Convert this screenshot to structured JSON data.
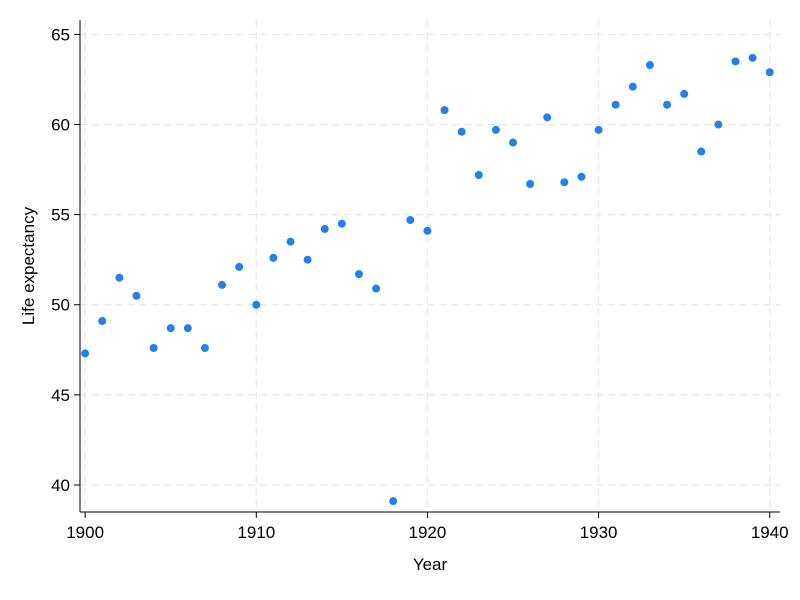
{
  "chart_data": {
    "type": "scatter",
    "xlabel": "Year",
    "ylabel": "Life expectancy",
    "xlim": [
      1899.7,
      1940.6
    ],
    "ylim": [
      38.5,
      65.8
    ],
    "xticks": [
      1900,
      1910,
      1920,
      1930,
      1940
    ],
    "yticks": [
      40,
      45,
      50,
      55,
      60,
      65
    ],
    "grid": true,
    "point_color": "#1f82ec",
    "series": [
      {
        "x": [
          1900,
          1901,
          1902,
          1903,
          1904,
          1905,
          1906,
          1907,
          1908,
          1909,
          1910,
          1911,
          1912,
          1913,
          1914,
          1915,
          1916,
          1917,
          1918,
          1919,
          1920,
          1921,
          1922,
          1923,
          1924,
          1925,
          1926,
          1927,
          1928,
          1929,
          1930,
          1931,
          1932,
          1933,
          1934,
          1935,
          1936,
          1937,
          1938,
          1939,
          1940
        ],
        "y": [
          47.3,
          49.1,
          51.5,
          50.5,
          47.6,
          48.7,
          48.7,
          47.6,
          51.1,
          52.1,
          50.0,
          52.6,
          53.5,
          52.5,
          54.2,
          54.5,
          51.7,
          50.9,
          39.1,
          54.7,
          54.1,
          60.8,
          59.6,
          57.2,
          59.7,
          59.0,
          56.7,
          60.4,
          56.8,
          57.1,
          59.7,
          61.1,
          62.1,
          63.3,
          61.1,
          61.7,
          58.5,
          60.0,
          63.5,
          63.7,
          62.9
        ]
      }
    ]
  }
}
